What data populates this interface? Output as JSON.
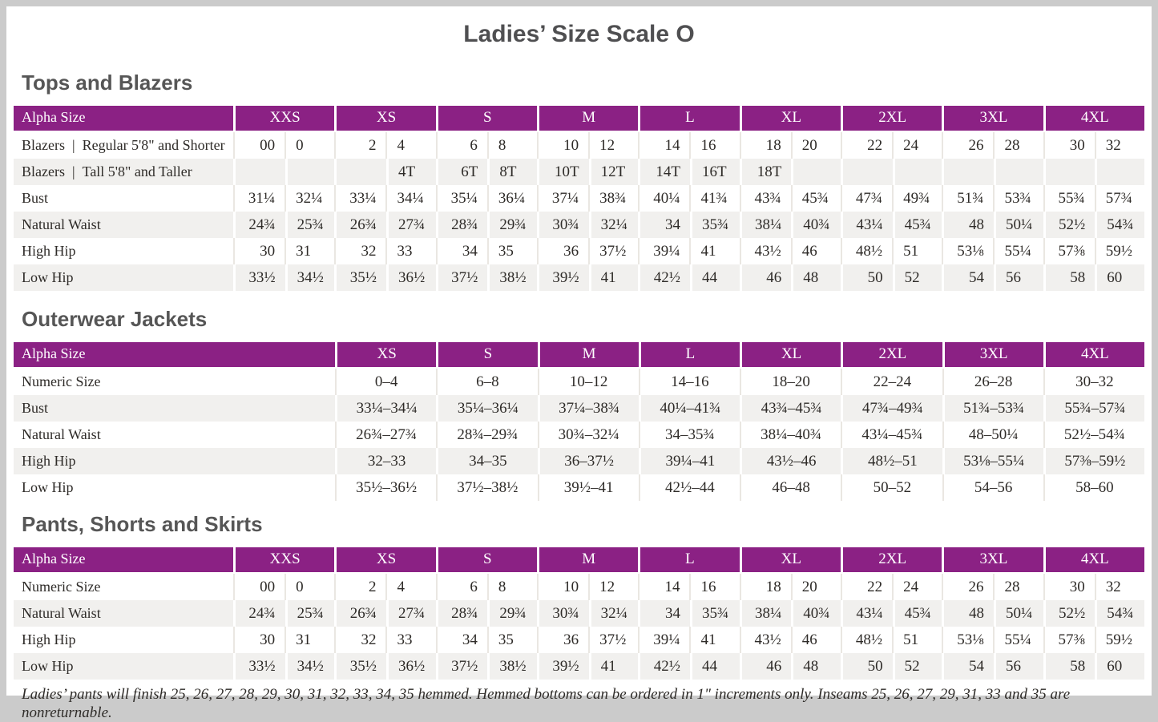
{
  "page_title": "Ladies’ Size Scale O",
  "colors": {
    "header_bg": "#8b2184",
    "header_text": "#ffffff",
    "row_shade": "#f1f0ee",
    "title_text": "#565656",
    "body_text": "#2e2b28"
  },
  "tables": [
    {
      "title": "Tops and Blazers",
      "type": "split",
      "header_label": "Alpha Size",
      "sizes": [
        "XXS",
        "XS",
        "S",
        "M",
        "L",
        "XL",
        "2XL",
        "3XL",
        "4XL"
      ],
      "rows": [
        {
          "label": "Blazers | Regular 5'8\" and Shorter",
          "values": [
            [
              "00",
              "0"
            ],
            [
              "2",
              "4"
            ],
            [
              "6",
              "8"
            ],
            [
              "10",
              "12"
            ],
            [
              "14",
              "16"
            ],
            [
              "18",
              "20"
            ],
            [
              "22",
              "24"
            ],
            [
              "26",
              "28"
            ],
            [
              "30",
              "32"
            ]
          ]
        },
        {
          "label": "Blazers | Tall 5'8\" and Taller",
          "values": [
            [
              "",
              ""
            ],
            [
              "",
              "4T"
            ],
            [
              "6T",
              "8T"
            ],
            [
              "10T",
              "12T"
            ],
            [
              "14T",
              "16T"
            ],
            [
              "18T",
              ""
            ],
            [
              "",
              ""
            ],
            [
              "",
              ""
            ],
            [
              "",
              ""
            ]
          ]
        },
        {
          "label": "Bust",
          "values": [
            [
              "31¼",
              "32¼"
            ],
            [
              "33¼",
              "34¼"
            ],
            [
              "35¼",
              "36¼"
            ],
            [
              "37¼",
              "38¾"
            ],
            [
              "40¼",
              "41¾"
            ],
            [
              "43¾",
              "45¾"
            ],
            [
              "47¾",
              "49¾"
            ],
            [
              "51¾",
              "53¾"
            ],
            [
              "55¾",
              "57¾"
            ]
          ]
        },
        {
          "label": "Natural Waist",
          "values": [
            [
              "24¾",
              "25¾"
            ],
            [
              "26¾",
              "27¾"
            ],
            [
              "28¾",
              "29¾"
            ],
            [
              "30¾",
              "32¼"
            ],
            [
              "34",
              "35¾"
            ],
            [
              "38¼",
              "40¾"
            ],
            [
              "43¼",
              "45¾"
            ],
            [
              "48",
              "50¼"
            ],
            [
              "52½",
              "54¾"
            ]
          ]
        },
        {
          "label": "High Hip",
          "values": [
            [
              "30",
              "31"
            ],
            [
              "32",
              "33"
            ],
            [
              "34",
              "35"
            ],
            [
              "36",
              "37½"
            ],
            [
              "39¼",
              "41"
            ],
            [
              "43½",
              "46"
            ],
            [
              "48½",
              "51"
            ],
            [
              "53⅛",
              "55¼"
            ],
            [
              "57⅜",
              "59½"
            ]
          ]
        },
        {
          "label": "Low Hip",
          "values": [
            [
              "33½",
              "34½"
            ],
            [
              "35½",
              "36½"
            ],
            [
              "37½",
              "38½"
            ],
            [
              "39½",
              "41"
            ],
            [
              "42½",
              "44"
            ],
            [
              "46",
              "48"
            ],
            [
              "50",
              "52"
            ],
            [
              "54",
              "56"
            ],
            [
              "58",
              "60"
            ]
          ]
        }
      ]
    },
    {
      "title": "Outerwear Jackets",
      "type": "range",
      "header_label": "Alpha Size",
      "sizes": [
        "XS",
        "S",
        "M",
        "L",
        "XL",
        "2XL",
        "3XL",
        "4XL"
      ],
      "rows": [
        {
          "label": "Numeric Size",
          "values": [
            "0–4",
            "6–8",
            "10–12",
            "14–16",
            "18–20",
            "22–24",
            "26–28",
            "30–32"
          ]
        },
        {
          "label": "Bust",
          "values": [
            "33¼–34¼",
            "35¼–36¼",
            "37¼–38¾",
            "40¼–41¾",
            "43¾–45¾",
            "47¾–49¾",
            "51¾–53¾",
            "55¾–57¾"
          ]
        },
        {
          "label": "Natural Waist",
          "values": [
            "26¾–27¾",
            "28¾–29¾",
            "30¾–32¼",
            "34–35¾",
            "38¼–40¾",
            "43¼–45¾",
            "48–50¼",
            "52½–54¾"
          ]
        },
        {
          "label": "High Hip",
          "values": [
            "32–33",
            "34–35",
            "36–37½",
            "39¼–41",
            "43½–46",
            "48½–51",
            "53⅛–55¼",
            "57⅜–59½"
          ]
        },
        {
          "label": "Low Hip",
          "values": [
            "35½–36½",
            "37½–38½",
            "39½–41",
            "42½–44",
            "46–48",
            "50–52",
            "54–56",
            "58–60"
          ]
        }
      ]
    },
    {
      "title": "Pants, Shorts and Skirts",
      "type": "split",
      "header_label": "Alpha Size",
      "sizes": [
        "XXS",
        "XS",
        "S",
        "M",
        "L",
        "XL",
        "2XL",
        "3XL",
        "4XL"
      ],
      "rows": [
        {
          "label": "Numeric Size",
          "values": [
            [
              "00",
              "0"
            ],
            [
              "2",
              "4"
            ],
            [
              "6",
              "8"
            ],
            [
              "10",
              "12"
            ],
            [
              "14",
              "16"
            ],
            [
              "18",
              "20"
            ],
            [
              "22",
              "24"
            ],
            [
              "26",
              "28"
            ],
            [
              "30",
              "32"
            ]
          ]
        },
        {
          "label": "Natural Waist",
          "values": [
            [
              "24¾",
              "25¾"
            ],
            [
              "26¾",
              "27¾"
            ],
            [
              "28¾",
              "29¾"
            ],
            [
              "30¾",
              "32¼"
            ],
            [
              "34",
              "35¾"
            ],
            [
              "38¼",
              "40¾"
            ],
            [
              "43¼",
              "45¾"
            ],
            [
              "48",
              "50¼"
            ],
            [
              "52½",
              "54¾"
            ]
          ]
        },
        {
          "label": "High Hip",
          "values": [
            [
              "30",
              "31"
            ],
            [
              "32",
              "33"
            ],
            [
              "34",
              "35"
            ],
            [
              "36",
              "37½"
            ],
            [
              "39¼",
              "41"
            ],
            [
              "43½",
              "46"
            ],
            [
              "48½",
              "51"
            ],
            [
              "53⅛",
              "55¼"
            ],
            [
              "57⅜",
              "59½"
            ]
          ]
        },
        {
          "label": "Low Hip",
          "values": [
            [
              "33½",
              "34½"
            ],
            [
              "35½",
              "36½"
            ],
            [
              "37½",
              "38½"
            ],
            [
              "39½",
              "41"
            ],
            [
              "42½",
              "44"
            ],
            [
              "46",
              "48"
            ],
            [
              "50",
              "52"
            ],
            [
              "54",
              "56"
            ],
            [
              "58",
              "60"
            ]
          ]
        }
      ]
    }
  ],
  "footnote": "Ladies’ pants will finish 25, 26, 27, 28, 29, 30, 31, 32, 33, 34, 35 hemmed. Hemmed bottoms can be ordered in 1\" increments only. Inseams 25, 26, 27, 29, 31, 33 and 35 are nonreturnable."
}
